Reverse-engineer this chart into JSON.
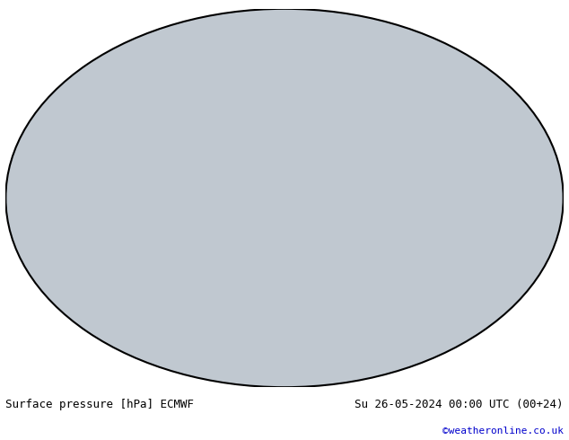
{
  "title_left": "Surface pressure [hPa] ECMWF",
  "title_right": "Su 26-05-2024 00:00 UTC (00+24)",
  "credit": "©weatheronline.co.uk",
  "title_left_color": "#000000",
  "title_right_color": "#000000",
  "credit_color": "#0000cc",
  "bg_color": "#ffffff",
  "map_bg": "#e8e8f0",
  "land_color": "#d0d0d0",
  "high_land_color": "#90c090",
  "ocean_color": "#c8d8e8",
  "isobar_low_color": "#0000ff",
  "isobar_high_color": "#ff0000",
  "isobar_mid_color": "#000000",
  "figsize": [
    6.34,
    4.9
  ],
  "dpi": 100
}
